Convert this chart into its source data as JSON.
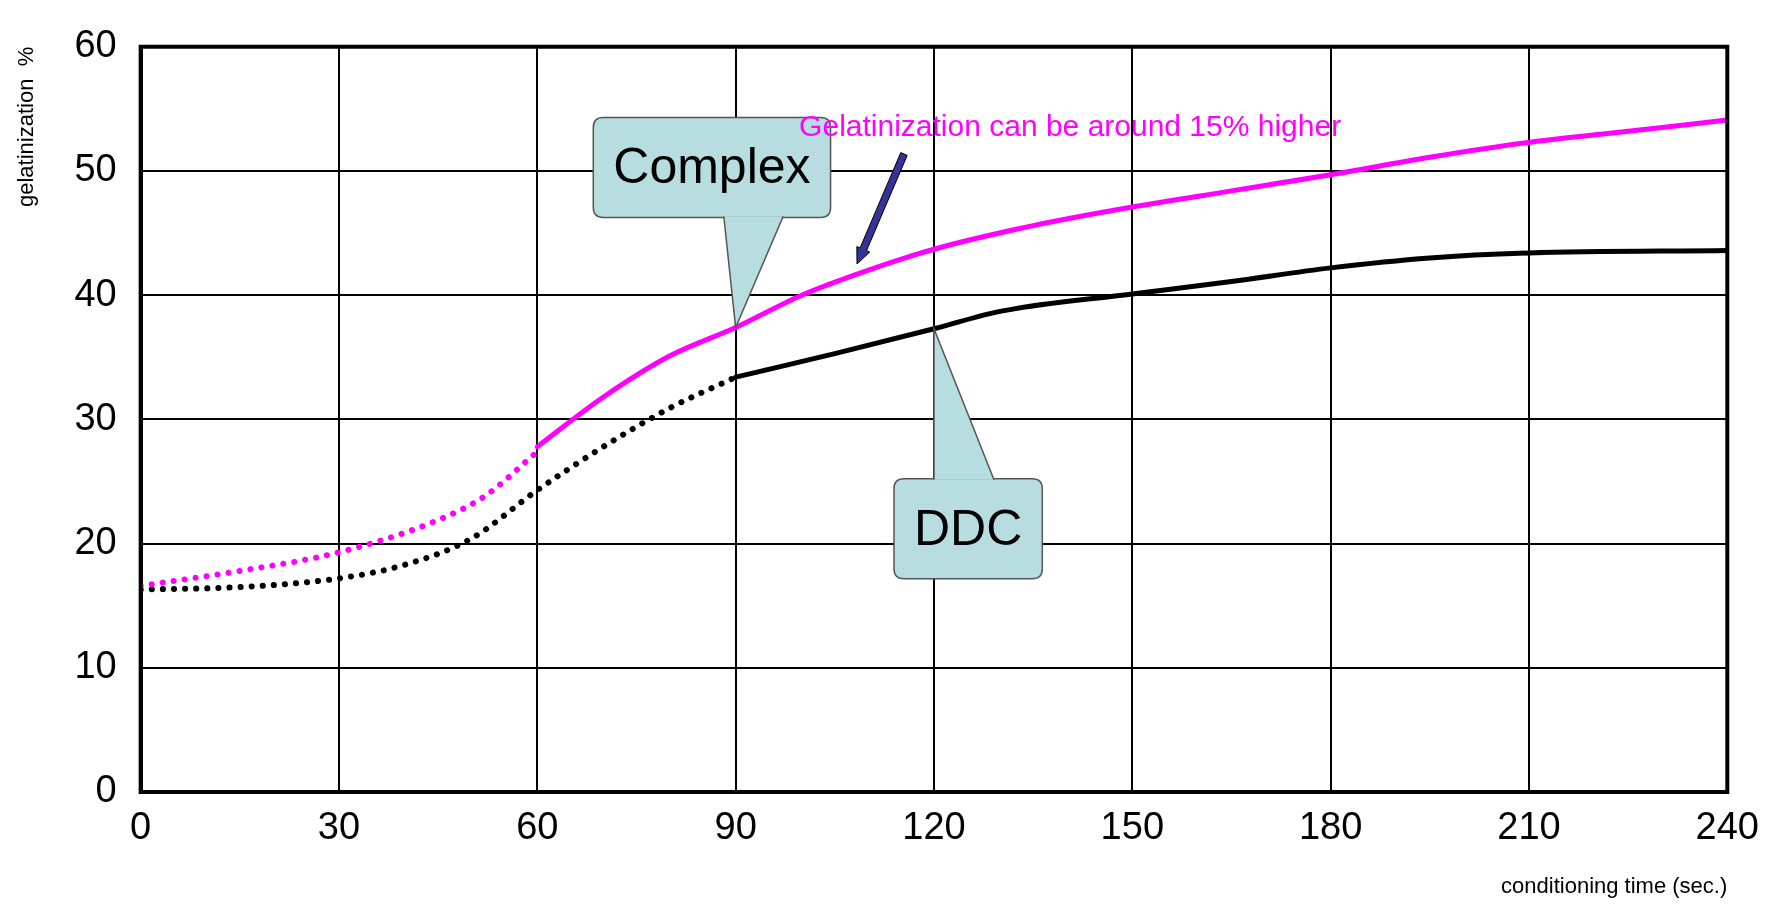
{
  "chart_data": {
    "type": "line",
    "xlabel": "conditioning time (sec.)",
    "ylabel": "gelatinization  %",
    "xlim": [
      0,
      240
    ],
    "xticks": [
      0,
      30,
      60,
      90,
      120,
      150,
      180,
      210,
      240
    ],
    "ylim": [
      0,
      60
    ],
    "yticks": [
      0,
      10,
      20,
      30,
      40,
      50,
      60
    ],
    "grid": true,
    "legend": false,
    "marker": "none",
    "series": [
      {
        "color": "#ff00ff",
        "line_style": "dotted",
        "x": [
          0,
          15,
          30,
          45,
          52,
          60
        ],
        "values": [
          16.6,
          17.8,
          19.3,
          21.9,
          23.8,
          27.4
        ]
      },
      {
        "name": "Complex",
        "color": "#ff00ff",
        "line_style": "solid",
        "x": [
          60,
          70,
          80,
          90,
          100,
          110,
          120,
          135,
          150,
          165,
          180,
          195,
          210,
          225,
          240
        ],
        "values": [
          27.8,
          31.8,
          35.1,
          37.4,
          40,
          42,
          43.7,
          45.6,
          47.1,
          48.4,
          49.7,
          51.1,
          52.3,
          53.2,
          54.1
        ]
      },
      {
        "color": "#000000",
        "line_style": "dotted",
        "x": [
          0,
          15,
          30,
          40,
          50,
          60,
          70,
          80,
          90
        ],
        "values": [
          16.3,
          16.5,
          17.2,
          18.3,
          20.4,
          24.3,
          27.8,
          30.9,
          33.4
        ]
      },
      {
        "name": "DDC",
        "color": "#000000",
        "line_style": "solid",
        "x": [
          90,
          105,
          120,
          130,
          150,
          165,
          180,
          195,
          210,
          240
        ],
        "values": [
          33.4,
          35.3,
          37.3,
          38.7,
          40.1,
          41.1,
          42.2,
          43,
          43.4,
          43.6
        ]
      }
    ],
    "annotations": [
      "Gelatinization can be around 15% higher"
    ]
  }
}
